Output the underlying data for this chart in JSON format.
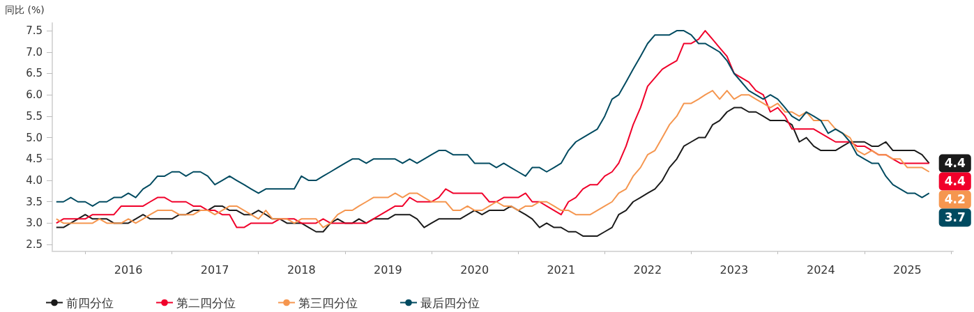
{
  "chart_data": {
    "type": "line",
    "ylabel": "同比 (%)",
    "x": [
      "2015-09",
      "2015-10",
      "2015-11",
      "2015-12",
      "2016-01",
      "2016-02",
      "2016-03",
      "2016-04",
      "2016-05",
      "2016-06",
      "2016-07",
      "2016-08",
      "2016-09",
      "2016-10",
      "2016-11",
      "2016-12",
      "2017-01",
      "2017-02",
      "2017-03",
      "2017-04",
      "2017-05",
      "2017-06",
      "2017-07",
      "2017-08",
      "2017-09",
      "2017-10",
      "2017-11",
      "2017-12",
      "2018-01",
      "2018-02",
      "2018-03",
      "2018-04",
      "2018-05",
      "2018-06",
      "2018-07",
      "2018-08",
      "2018-09",
      "2018-10",
      "2018-11",
      "2018-12",
      "2019-01",
      "2019-02",
      "2019-03",
      "2019-04",
      "2019-05",
      "2019-06",
      "2019-07",
      "2019-08",
      "2019-09",
      "2019-10",
      "2019-11",
      "2019-12",
      "2020-01",
      "2020-02",
      "2020-03",
      "2020-04",
      "2020-05",
      "2020-06",
      "2020-07",
      "2020-08",
      "2020-09",
      "2020-10",
      "2020-11",
      "2020-12",
      "2021-01",
      "2021-02",
      "2021-03",
      "2021-04",
      "2021-05",
      "2021-06",
      "2021-07",
      "2021-08",
      "2021-09",
      "2021-10",
      "2021-11",
      "2021-12",
      "2022-01",
      "2022-02",
      "2022-03",
      "2022-04",
      "2022-05",
      "2022-06",
      "2022-07",
      "2022-08",
      "2022-09",
      "2022-10",
      "2022-11",
      "2022-12",
      "2023-01",
      "2023-02",
      "2023-03",
      "2023-04",
      "2023-05",
      "2023-06",
      "2023-07",
      "2023-08",
      "2023-09",
      "2023-10",
      "2023-11",
      "2023-12",
      "2024-01",
      "2024-02",
      "2024-03",
      "2024-04",
      "2024-05",
      "2024-06",
      "2024-07",
      "2024-08",
      "2024-09",
      "2024-10",
      "2024-11",
      "2024-12",
      "2025-01",
      "2025-02",
      "2025-03",
      "2025-04",
      "2025-05",
      "2025-06",
      "2025-07",
      "2025-08",
      "2025-09",
      "2025-10"
    ],
    "series": [
      {
        "name": "前四分位",
        "color": "#1a1a1a",
        "values": [
          2.9,
          2.9,
          3.0,
          3.1,
          3.2,
          3.1,
          3.1,
          3.1,
          3.0,
          3.0,
          3.0,
          3.1,
          3.2,
          3.1,
          3.1,
          3.1,
          3.1,
          3.2,
          3.2,
          3.3,
          3.3,
          3.3,
          3.4,
          3.4,
          3.3,
          3.3,
          3.2,
          3.2,
          3.3,
          3.2,
          3.1,
          3.1,
          3.0,
          3.0,
          3.0,
          2.9,
          2.8,
          2.8,
          3.0,
          3.1,
          3.0,
          3.0,
          3.1,
          3.0,
          3.1,
          3.1,
          3.1,
          3.2,
          3.2,
          3.2,
          3.1,
          2.9,
          3.0,
          3.1,
          3.1,
          3.1,
          3.1,
          3.2,
          3.3,
          3.2,
          3.3,
          3.3,
          3.3,
          3.4,
          3.3,
          3.2,
          3.1,
          2.9,
          3.0,
          2.9,
          2.9,
          2.8,
          2.8,
          2.7,
          2.7,
          2.7,
          2.8,
          2.9,
          3.2,
          3.3,
          3.5,
          3.6,
          3.7,
          3.8,
          4.0,
          4.3,
          4.5,
          4.8,
          4.9,
          5.0,
          5.0,
          5.3,
          5.4,
          5.6,
          5.7,
          5.7,
          5.6,
          5.6,
          5.5,
          5.4,
          5.4,
          5.4,
          5.3,
          4.9,
          5.0,
          4.8,
          4.7,
          4.7,
          4.7,
          4.8,
          4.9,
          4.9,
          4.9,
          4.8,
          4.8,
          4.9,
          4.7,
          4.7,
          4.7,
          4.7,
          4.6,
          4.4
        ],
        "value_labels": [
          null,
          null,
          null,
          null,
          null,
          null,
          null,
          null,
          null,
          null,
          null,
          null,
          null,
          null,
          null,
          null,
          null,
          null,
          null,
          null,
          null,
          null,
          null,
          null,
          null,
          null,
          null,
          null,
          null,
          null,
          null,
          null,
          null,
          null,
          null,
          null,
          null,
          null,
          null,
          null,
          null,
          null,
          null,
          null,
          null,
          null,
          null,
          null,
          null,
          null,
          null,
          null,
          null,
          null,
          null,
          null,
          null,
          null,
          null,
          null,
          null,
          null,
          null,
          null,
          null,
          null,
          null,
          null,
          null,
          null,
          null,
          null,
          null,
          null,
          null,
          null,
          null,
          null,
          null,
          null,
          null,
          null,
          null,
          null,
          null,
          null,
          null,
          null,
          null,
          null,
          null,
          null,
          null,
          null,
          null,
          null,
          null,
          null,
          null,
          null,
          null,
          null,
          null,
          null,
          null,
          null,
          null,
          null,
          null,
          null,
          null,
          null,
          null,
          null,
          null,
          null,
          null,
          null,
          null,
          null,
          null,
          "4.4"
        ]
      },
      {
        "name": "第二四分位",
        "color": "#f0002a",
        "values": [
          3.0,
          3.1,
          3.1,
          3.1,
          3.1,
          3.2,
          3.2,
          3.2,
          3.2,
          3.4,
          3.4,
          3.4,
          3.4,
          3.5,
          3.6,
          3.6,
          3.5,
          3.5,
          3.5,
          3.4,
          3.4,
          3.3,
          3.3,
          3.2,
          3.2,
          2.9,
          2.9,
          3.0,
          3.0,
          3.0,
          3.0,
          3.1,
          3.1,
          3.1,
          3.0,
          3.0,
          3.0,
          3.1,
          3.0,
          3.0,
          3.0,
          3.0,
          3.0,
          3.0,
          3.1,
          3.2,
          3.3,
          3.4,
          3.4,
          3.6,
          3.5,
          3.5,
          3.5,
          3.6,
          3.8,
          3.7,
          3.7,
          3.7,
          3.7,
          3.7,
          3.5,
          3.5,
          3.6,
          3.6,
          3.6,
          3.7,
          3.5,
          3.5,
          3.4,
          3.3,
          3.2,
          3.5,
          3.6,
          3.8,
          3.9,
          3.9,
          4.1,
          4.2,
          4.4,
          4.8,
          5.3,
          5.7,
          6.2,
          6.4,
          6.6,
          6.7,
          6.8,
          7.2,
          7.2,
          7.3,
          7.5,
          7.3,
          7.1,
          6.9,
          6.5,
          6.4,
          6.3,
          6.1,
          6.0,
          5.6,
          5.7,
          5.5,
          5.2,
          5.2,
          5.2,
          5.2,
          5.1,
          5.0,
          4.9,
          4.9,
          4.9,
          4.8,
          4.8,
          4.7,
          4.6,
          4.6,
          4.5,
          4.4,
          4.4,
          4.4,
          4.4,
          4.4
        ],
        "value_labels": [
          null,
          null,
          null,
          null,
          null,
          null,
          null,
          null,
          null,
          null,
          null,
          null,
          null,
          null,
          null,
          null,
          null,
          null,
          null,
          null,
          null,
          null,
          null,
          null,
          null,
          null,
          null,
          null,
          null,
          null,
          null,
          null,
          null,
          null,
          null,
          null,
          null,
          null,
          null,
          null,
          null,
          null,
          null,
          null,
          null,
          null,
          null,
          null,
          null,
          null,
          null,
          null,
          null,
          null,
          null,
          null,
          null,
          null,
          null,
          null,
          null,
          null,
          null,
          null,
          null,
          null,
          null,
          null,
          null,
          null,
          null,
          null,
          null,
          null,
          null,
          null,
          null,
          null,
          null,
          null,
          null,
          null,
          null,
          null,
          null,
          null,
          null,
          null,
          null,
          null,
          null,
          null,
          null,
          null,
          null,
          null,
          null,
          null,
          null,
          null,
          null,
          null,
          null,
          null,
          null,
          null,
          null,
          null,
          null,
          null,
          null,
          null,
          null,
          null,
          null,
          null,
          null,
          null,
          null,
          null,
          null,
          "4.4"
        ]
      },
      {
        "name": "第三四分位",
        "color": "#f5964f",
        "values": [
          3.1,
          3.0,
          3.0,
          3.0,
          3.0,
          3.0,
          3.1,
          3.0,
          3.0,
          3.0,
          3.1,
          3.0,
          3.1,
          3.2,
          3.3,
          3.3,
          3.3,
          3.2,
          3.2,
          3.2,
          3.3,
          3.3,
          3.2,
          3.3,
          3.4,
          3.4,
          3.3,
          3.2,
          3.1,
          3.3,
          3.1,
          3.1,
          3.1,
          3.0,
          3.1,
          3.1,
          3.1,
          2.9,
          3.0,
          3.2,
          3.3,
          3.3,
          3.4,
          3.5,
          3.6,
          3.6,
          3.6,
          3.7,
          3.6,
          3.7,
          3.7,
          3.6,
          3.5,
          3.5,
          3.5,
          3.3,
          3.3,
          3.4,
          3.3,
          3.3,
          3.4,
          3.5,
          3.4,
          3.4,
          3.3,
          3.4,
          3.4,
          3.5,
          3.5,
          3.4,
          3.3,
          3.3,
          3.2,
          3.2,
          3.2,
          3.3,
          3.4,
          3.5,
          3.7,
          3.8,
          4.1,
          4.3,
          4.6,
          4.7,
          5.0,
          5.3,
          5.5,
          5.8,
          5.8,
          5.9,
          6.0,
          6.1,
          5.9,
          6.1,
          5.9,
          6.0,
          6.0,
          5.9,
          5.8,
          5.7,
          5.8,
          5.6,
          5.6,
          5.5,
          5.6,
          5.4,
          5.4,
          5.4,
          5.2,
          5.1,
          5.0,
          4.7,
          4.6,
          4.7,
          4.6,
          4.6,
          4.5,
          4.5,
          4.3,
          4.3,
          4.3,
          4.2
        ],
        "value_labels": [
          null,
          null,
          null,
          null,
          null,
          null,
          null,
          null,
          null,
          null,
          null,
          null,
          null,
          null,
          null,
          null,
          null,
          null,
          null,
          null,
          null,
          null,
          null,
          null,
          null,
          null,
          null,
          null,
          null,
          null,
          null,
          null,
          null,
          null,
          null,
          null,
          null,
          null,
          null,
          null,
          null,
          null,
          null,
          null,
          null,
          null,
          null,
          null,
          null,
          null,
          null,
          null,
          null,
          null,
          null,
          null,
          null,
          null,
          null,
          null,
          null,
          null,
          null,
          null,
          null,
          null,
          null,
          null,
          null,
          null,
          null,
          null,
          null,
          null,
          null,
          null,
          null,
          null,
          null,
          null,
          null,
          null,
          null,
          null,
          null,
          null,
          null,
          null,
          null,
          null,
          null,
          null,
          null,
          null,
          null,
          null,
          null,
          null,
          null,
          null,
          null,
          null,
          null,
          null,
          null,
          null,
          null,
          null,
          null,
          null,
          null,
          null,
          null,
          null,
          null,
          null,
          null,
          null,
          null,
          null,
          null,
          "4.2"
        ]
      },
      {
        "name": "最后四分位",
        "color": "#004a60",
        "values": [
          3.5,
          3.5,
          3.6,
          3.5,
          3.5,
          3.4,
          3.5,
          3.5,
          3.6,
          3.6,
          3.7,
          3.6,
          3.8,
          3.9,
          4.1,
          4.1,
          4.2,
          4.2,
          4.1,
          4.2,
          4.2,
          4.1,
          3.9,
          4.0,
          4.1,
          4.0,
          3.9,
          3.8,
          3.7,
          3.8,
          3.8,
          3.8,
          3.8,
          3.8,
          4.1,
          4.0,
          4.0,
          4.1,
          4.2,
          4.3,
          4.4,
          4.5,
          4.5,
          4.4,
          4.5,
          4.5,
          4.5,
          4.5,
          4.4,
          4.5,
          4.4,
          4.5,
          4.6,
          4.7,
          4.7,
          4.6,
          4.6,
          4.6,
          4.4,
          4.4,
          4.4,
          4.3,
          4.4,
          4.3,
          4.2,
          4.1,
          4.3,
          4.3,
          4.2,
          4.3,
          4.4,
          4.7,
          4.9,
          5.0,
          5.1,
          5.2,
          5.5,
          5.9,
          6.0,
          6.3,
          6.6,
          6.9,
          7.2,
          7.4,
          7.4,
          7.4,
          7.5,
          7.5,
          7.4,
          7.2,
          7.2,
          7.1,
          7.0,
          6.8,
          6.5,
          6.3,
          6.1,
          6.0,
          5.9,
          6.0,
          5.9,
          5.7,
          5.5,
          5.4,
          5.6,
          5.5,
          5.4,
          5.1,
          5.2,
          5.1,
          4.9,
          4.6,
          4.5,
          4.4,
          4.4,
          4.1,
          3.9,
          3.8,
          3.7,
          3.7,
          3.6,
          3.7
        ],
        "value_labels": [
          null,
          null,
          null,
          null,
          null,
          null,
          null,
          null,
          null,
          null,
          null,
          null,
          null,
          null,
          null,
          null,
          null,
          null,
          null,
          null,
          null,
          null,
          null,
          null,
          null,
          null,
          null,
          null,
          null,
          null,
          null,
          null,
          null,
          null,
          null,
          null,
          null,
          null,
          null,
          null,
          null,
          null,
          null,
          null,
          null,
          null,
          null,
          null,
          null,
          null,
          null,
          null,
          null,
          null,
          null,
          null,
          null,
          null,
          null,
          null,
          null,
          null,
          null,
          null,
          null,
          null,
          null,
          null,
          null,
          null,
          null,
          null,
          null,
          null,
          null,
          null,
          null,
          null,
          null,
          null,
          null,
          null,
          null,
          null,
          null,
          null,
          null,
          null,
          null,
          null,
          null,
          null,
          null,
          null,
          null,
          null,
          null,
          null,
          null,
          null,
          null,
          null,
          null,
          null,
          null,
          null,
          null,
          null,
          null,
          null,
          null,
          null,
          null,
          null,
          null,
          null,
          null,
          null,
          null,
          null,
          null,
          "3.7"
        ]
      }
    ],
    "xlim": [
      "2015-08-15",
      "2026-01-10"
    ],
    "xticks": [
      {
        "value": "2016-01",
        "label": null
      },
      {
        "value": "2017-01",
        "label": null
      },
      {
        "value": "2018-01",
        "label": null
      },
      {
        "value": "2019-01",
        "label": null
      },
      {
        "value": "2020-01",
        "label": null
      },
      {
        "value": "2021-01",
        "label": null
      },
      {
        "value": "2022-01",
        "label": null
      },
      {
        "value": "2023-01",
        "label": null
      },
      {
        "value": "2024-01",
        "label": null
      },
      {
        "value": "2025-01",
        "label": null
      },
      {
        "value": "2026-01",
        "label": null
      },
      {
        "value": "2016-07",
        "label": "2016"
      },
      {
        "value": "2017-07",
        "label": "2017"
      },
      {
        "value": "2018-07",
        "label": "2018"
      },
      {
        "value": "2019-07",
        "label": "2019"
      },
      {
        "value": "2020-07",
        "label": "2020"
      },
      {
        "value": "2021-07",
        "label": "2021"
      },
      {
        "value": "2022-07",
        "label": "2022"
      },
      {
        "value": "2023-07",
        "label": "2023"
      },
      {
        "value": "2024-07",
        "label": "2024"
      },
      {
        "value": "2025-07",
        "label": "2025"
      }
    ],
    "ylim": [
      2.34,
      7.68
    ],
    "yticks": [
      2.5,
      {
        "value": 3,
        "label": "3.0"
      },
      3.5,
      {
        "value": 4,
        "label": "4.0"
      },
      4.5,
      {
        "value": 5,
        "label": "5.0"
      },
      5.5,
      {
        "value": 6,
        "label": "6.0"
      },
      6.5,
      {
        "value": 7,
        "label": "7.0"
      },
      7.5
    ],
    "grid": false,
    "legend": "bottom left"
  }
}
